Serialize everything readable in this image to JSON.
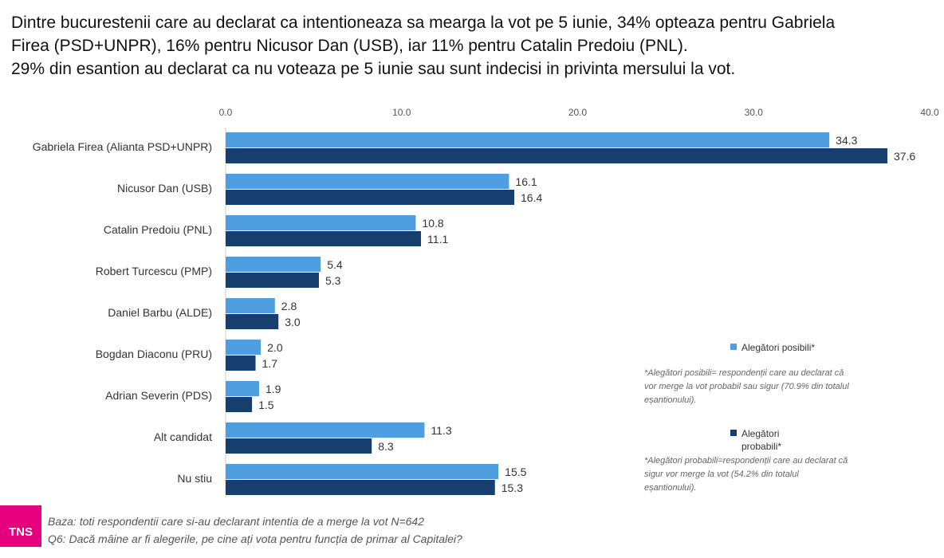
{
  "header": {
    "line1": "Dintre bucurestenii care au declarat ca intentioneaza sa mearga la vot pe 5 iunie, 34% opteaza pentru Gabriela",
    "line2": "Firea (PSD+UNPR), 16% pentru Nicusor Dan (USB), iar 11% pentru Catalin Predoiu (PNL).",
    "line3": "29% din esantion au declarat ca nu voteaza pe 5 iunie sau sunt indecisi in privinta mersului la vot."
  },
  "chart_data": {
    "type": "bar",
    "orientation": "horizontal",
    "categories": [
      "Gabriela Firea (Alianta PSD+UNPR)",
      "Nicusor Dan (USB)",
      "Catalin Predoiu (PNL)",
      "Robert Turcescu (PMP)",
      "Daniel Barbu (ALDE)",
      "Bogdan Diaconu (PRU)",
      "Adrian Severin (PDS)",
      "Alt candidat",
      "Nu stiu"
    ],
    "series": [
      {
        "name": "Alegători posibili*",
        "color": "#4f9fe0",
        "values": [
          34.3,
          16.1,
          10.8,
          5.4,
          2.8,
          2.0,
          1.9,
          11.3,
          15.5
        ]
      },
      {
        "name": "Alegători probabili*",
        "color": "#163e6e",
        "values": [
          37.6,
          16.4,
          11.1,
          5.3,
          3.0,
          1.7,
          1.5,
          8.3,
          15.3
        ]
      }
    ],
    "x_ticks": [
      "0.0",
      "10.0",
      "20.0",
      "30.0",
      "40.0"
    ],
    "xlim": [
      0,
      40
    ],
    "axis_position": "top",
    "grid": false,
    "legend_placement": "right"
  },
  "legend": {
    "entry1": "Alegători posibili*",
    "note1_lines": [
      "*Alegători posibili= respondenții care au declarat că",
      "vor merge la vot probabil sau sigur (70.9% din totalul",
      "eșantionului)."
    ],
    "entry2_lines": [
      "Alegători",
      "probabili*"
    ],
    "note2_lines": [
      "*Alegători probabili=respondenții care au declarat că",
      "sigur vor merge la vot (54.2% din totalul",
      "eșantionului)."
    ]
  },
  "footer": {
    "logo": "TNS",
    "base": "Baza: toti respondentii care si-au declarant intentia de a merge la vot N=642",
    "question": "Q6: Dacă mâine ar fi alegerile, pe cine ați vota pentru funcția de primar al Capitalei?"
  }
}
